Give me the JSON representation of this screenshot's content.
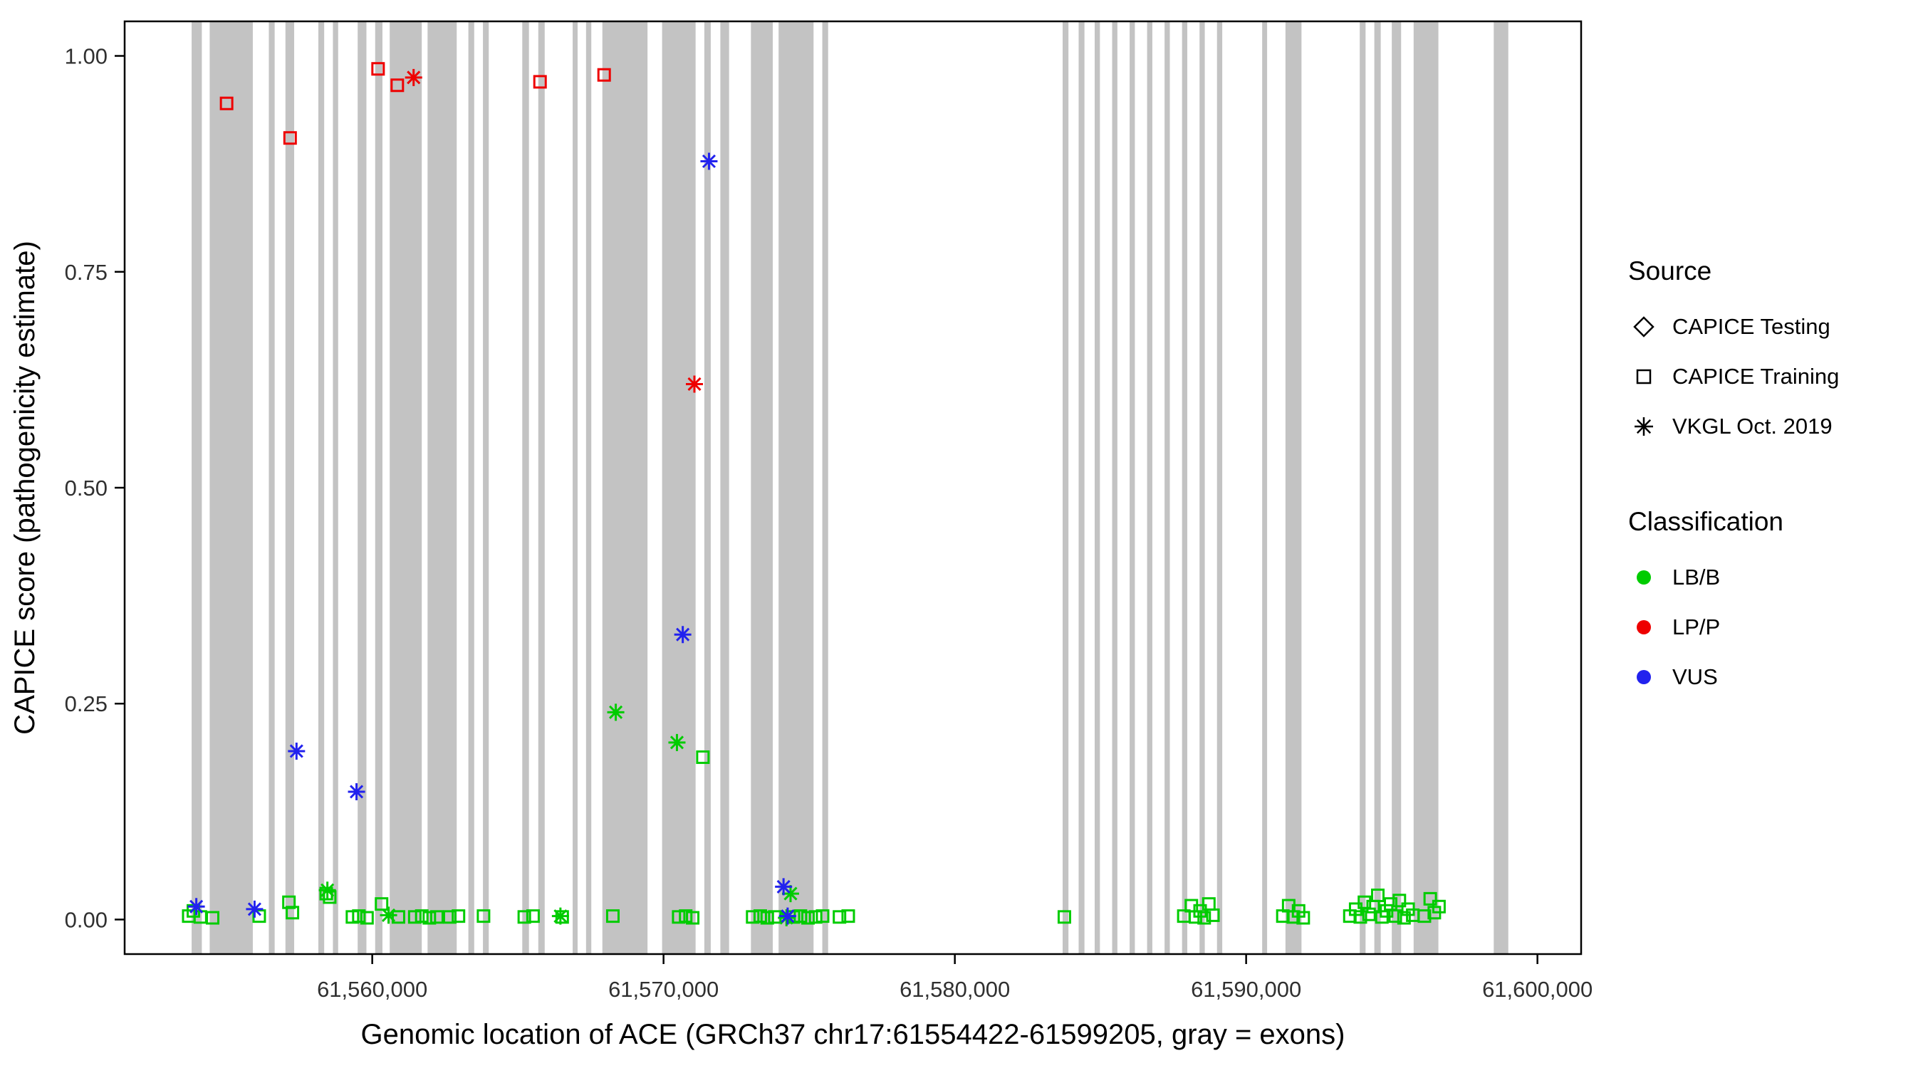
{
  "chart_data": {
    "type": "scatter",
    "title": "",
    "xlabel": "Genomic location of ACE (GRCh37 chr17:61554422-61599205, gray = exons)",
    "ylabel": "CAPICE score (pathogenicity estimate)",
    "xlim": [
      61551500,
      61601500
    ],
    "ylim": [
      -0.04,
      1.04
    ],
    "grid": "off",
    "panel_border_color": "#000000",
    "exon_color": "#c3c3c3",
    "x_ticks": [
      {
        "value": 61560000,
        "label": "61,560,000"
      },
      {
        "value": 61570000,
        "label": "61,570,000"
      },
      {
        "value": 61580000,
        "label": "61,580,000"
      },
      {
        "value": 61590000,
        "label": "61,590,000"
      },
      {
        "value": 61600000,
        "label": "61,600,000"
      }
    ],
    "y_ticks": [
      {
        "value": 0.0,
        "label": "0.00"
      },
      {
        "value": 0.25,
        "label": "0.25"
      },
      {
        "value": 0.5,
        "label": "0.50"
      },
      {
        "value": 0.75,
        "label": "0.75"
      },
      {
        "value": 1.0,
        "label": "1.00"
      }
    ],
    "exons": [
      [
        61553800,
        61554150
      ],
      [
        61554420,
        61555900
      ],
      [
        61556450,
        61556650
      ],
      [
        61557020,
        61557320
      ],
      [
        61558150,
        61558350
      ],
      [
        61558650,
        61558830
      ],
      [
        61559500,
        61559800
      ],
      [
        61560100,
        61560350
      ],
      [
        61560600,
        61561700
      ],
      [
        61561900,
        61562900
      ],
      [
        61563300,
        61563500
      ],
      [
        61563800,
        61564000
      ],
      [
        61565150,
        61565380
      ],
      [
        61565700,
        61565920
      ],
      [
        61566880,
        61567050
      ],
      [
        61567340,
        61567520
      ],
      [
        61567900,
        61569450
      ],
      [
        61569950,
        61571100
      ],
      [
        61571400,
        61571620
      ],
      [
        61571950,
        61572250
      ],
      [
        61573000,
        61573750
      ],
      [
        61573950,
        61575150
      ],
      [
        61575450,
        61575650
      ],
      [
        61583700,
        61583900
      ],
      [
        61584250,
        61584450
      ],
      [
        61584800,
        61584980
      ],
      [
        61585400,
        61585580
      ],
      [
        61586000,
        61586180
      ],
      [
        61586600,
        61586780
      ],
      [
        61587200,
        61587380
      ],
      [
        61587800,
        61587980
      ],
      [
        61588400,
        61588580
      ],
      [
        61589000,
        61589180
      ],
      [
        61590550,
        61590720
      ],
      [
        61591350,
        61591900
      ],
      [
        61593900,
        61594100
      ],
      [
        61594400,
        61594620
      ],
      [
        61595000,
        61595320
      ],
      [
        61595750,
        61596600
      ],
      [
        61598500,
        61599000
      ]
    ],
    "series": [
      {
        "name": "LB/B - CAPICE Training",
        "classification": "LB/B",
        "source": "CAPICE Training",
        "shape": "square",
        "color": "#00cc00",
        "points": [
          [
            61553700,
            0.004
          ],
          [
            61553860,
            0.01
          ],
          [
            61554100,
            0.003
          ],
          [
            61554520,
            0.002
          ],
          [
            61556120,
            0.004
          ],
          [
            61557140,
            0.02
          ],
          [
            61557260,
            0.008
          ],
          [
            61558420,
            0.03
          ],
          [
            61558540,
            0.026
          ],
          [
            61559320,
            0.003
          ],
          [
            61559540,
            0.004
          ],
          [
            61559820,
            0.002
          ],
          [
            61560320,
            0.018
          ],
          [
            61560900,
            0.003
          ],
          [
            61561460,
            0.003
          ],
          [
            61561700,
            0.004
          ],
          [
            61561960,
            0.002
          ],
          [
            61562220,
            0.003
          ],
          [
            61562660,
            0.003
          ],
          [
            61562960,
            0.004
          ],
          [
            61563820,
            0.004
          ],
          [
            61565220,
            0.003
          ],
          [
            61565520,
            0.004
          ],
          [
            61566520,
            0.003
          ],
          [
            61568260,
            0.004
          ],
          [
            61570520,
            0.003
          ],
          [
            61570760,
            0.004
          ],
          [
            61571000,
            0.002
          ],
          [
            61571350,
            0.188
          ],
          [
            61573060,
            0.003
          ],
          [
            61573320,
            0.004
          ],
          [
            61573560,
            0.002
          ],
          [
            61573820,
            0.003
          ],
          [
            61574460,
            0.003
          ],
          [
            61574700,
            0.004
          ],
          [
            61574960,
            0.002
          ],
          [
            61575220,
            0.003
          ],
          [
            61575460,
            0.004
          ],
          [
            61576040,
            0.003
          ],
          [
            61576340,
            0.004
          ],
          [
            61583760,
            0.003
          ],
          [
            61587860,
            0.004
          ],
          [
            61588120,
            0.016
          ],
          [
            61588260,
            0.003
          ],
          [
            61588420,
            0.01
          ],
          [
            61588560,
            0.002
          ],
          [
            61588720,
            0.018
          ],
          [
            61588860,
            0.005
          ],
          [
            61591260,
            0.004
          ],
          [
            61591460,
            0.016
          ],
          [
            61591620,
            0.003
          ],
          [
            61591800,
            0.01
          ],
          [
            61591960,
            0.002
          ],
          [
            61593560,
            0.004
          ],
          [
            61593760,
            0.012
          ],
          [
            61593920,
            0.003
          ],
          [
            61594060,
            0.02
          ],
          [
            61594220,
            0.006
          ],
          [
            61594360,
            0.015
          ],
          [
            61594520,
            0.028
          ],
          [
            61594660,
            0.003
          ],
          [
            61594820,
            0.01
          ],
          [
            61594960,
            0.018
          ],
          [
            61595120,
            0.004
          ],
          [
            61595260,
            0.022
          ],
          [
            61595420,
            0.002
          ],
          [
            61595560,
            0.012
          ],
          [
            61595720,
            0.005
          ],
          [
            61596120,
            0.004
          ],
          [
            61596320,
            0.024
          ],
          [
            61596460,
            0.008
          ],
          [
            61596620,
            0.015
          ]
        ]
      },
      {
        "name": "LB/B - VKGL Oct. 2019",
        "classification": "LB/B",
        "source": "VKGL Oct. 2019",
        "shape": "asterisk",
        "color": "#00cc00",
        "points": [
          [
            61558460,
            0.034
          ],
          [
            61560560,
            0.005
          ],
          [
            61566460,
            0.004
          ],
          [
            61568360,
            0.24
          ],
          [
            61570460,
            0.205
          ],
          [
            61574360,
            0.03
          ],
          [
            61574220,
            0.002
          ]
        ]
      },
      {
        "name": "LP/P - CAPICE Training",
        "classification": "LP/P",
        "source": "CAPICE Training",
        "shape": "square",
        "color": "#ee0000",
        "points": [
          [
            61555000,
            0.945
          ],
          [
            61557180,
            0.905
          ],
          [
            61560200,
            0.985
          ],
          [
            61560860,
            0.966
          ],
          [
            61565760,
            0.97
          ],
          [
            61567960,
            0.978
          ]
        ]
      },
      {
        "name": "LP/P - VKGL Oct. 2019",
        "classification": "LP/P",
        "source": "VKGL Oct. 2019",
        "shape": "asterisk",
        "color": "#ee0000",
        "points": [
          [
            61561420,
            0.975
          ],
          [
            61571060,
            0.62
          ]
        ]
      },
      {
        "name": "VUS - VKGL Oct. 2019",
        "classification": "VUS",
        "source": "VKGL Oct. 2019",
        "shape": "asterisk",
        "color": "#2222ee",
        "points": [
          [
            61553960,
            0.015
          ],
          [
            61555960,
            0.012
          ],
          [
            61557400,
            0.195
          ],
          [
            61559460,
            0.148
          ],
          [
            61570660,
            0.33
          ],
          [
            61571560,
            0.878
          ],
          [
            61574120,
            0.038
          ],
          [
            61574260,
            0.004
          ]
        ]
      }
    ],
    "legend": {
      "source": {
        "title": "Source",
        "items": [
          {
            "label": "CAPICE Testing",
            "shape": "diamond"
          },
          {
            "label": "CAPICE Training",
            "shape": "square"
          },
          {
            "label": "VKGL Oct. 2019",
            "shape": "asterisk"
          }
        ]
      },
      "classification": {
        "title": "Classification",
        "items": [
          {
            "label": "LB/B",
            "color": "#00cc00"
          },
          {
            "label": "LP/P",
            "color": "#ee0000"
          },
          {
            "label": "VUS",
            "color": "#2222ee"
          }
        ]
      }
    }
  }
}
